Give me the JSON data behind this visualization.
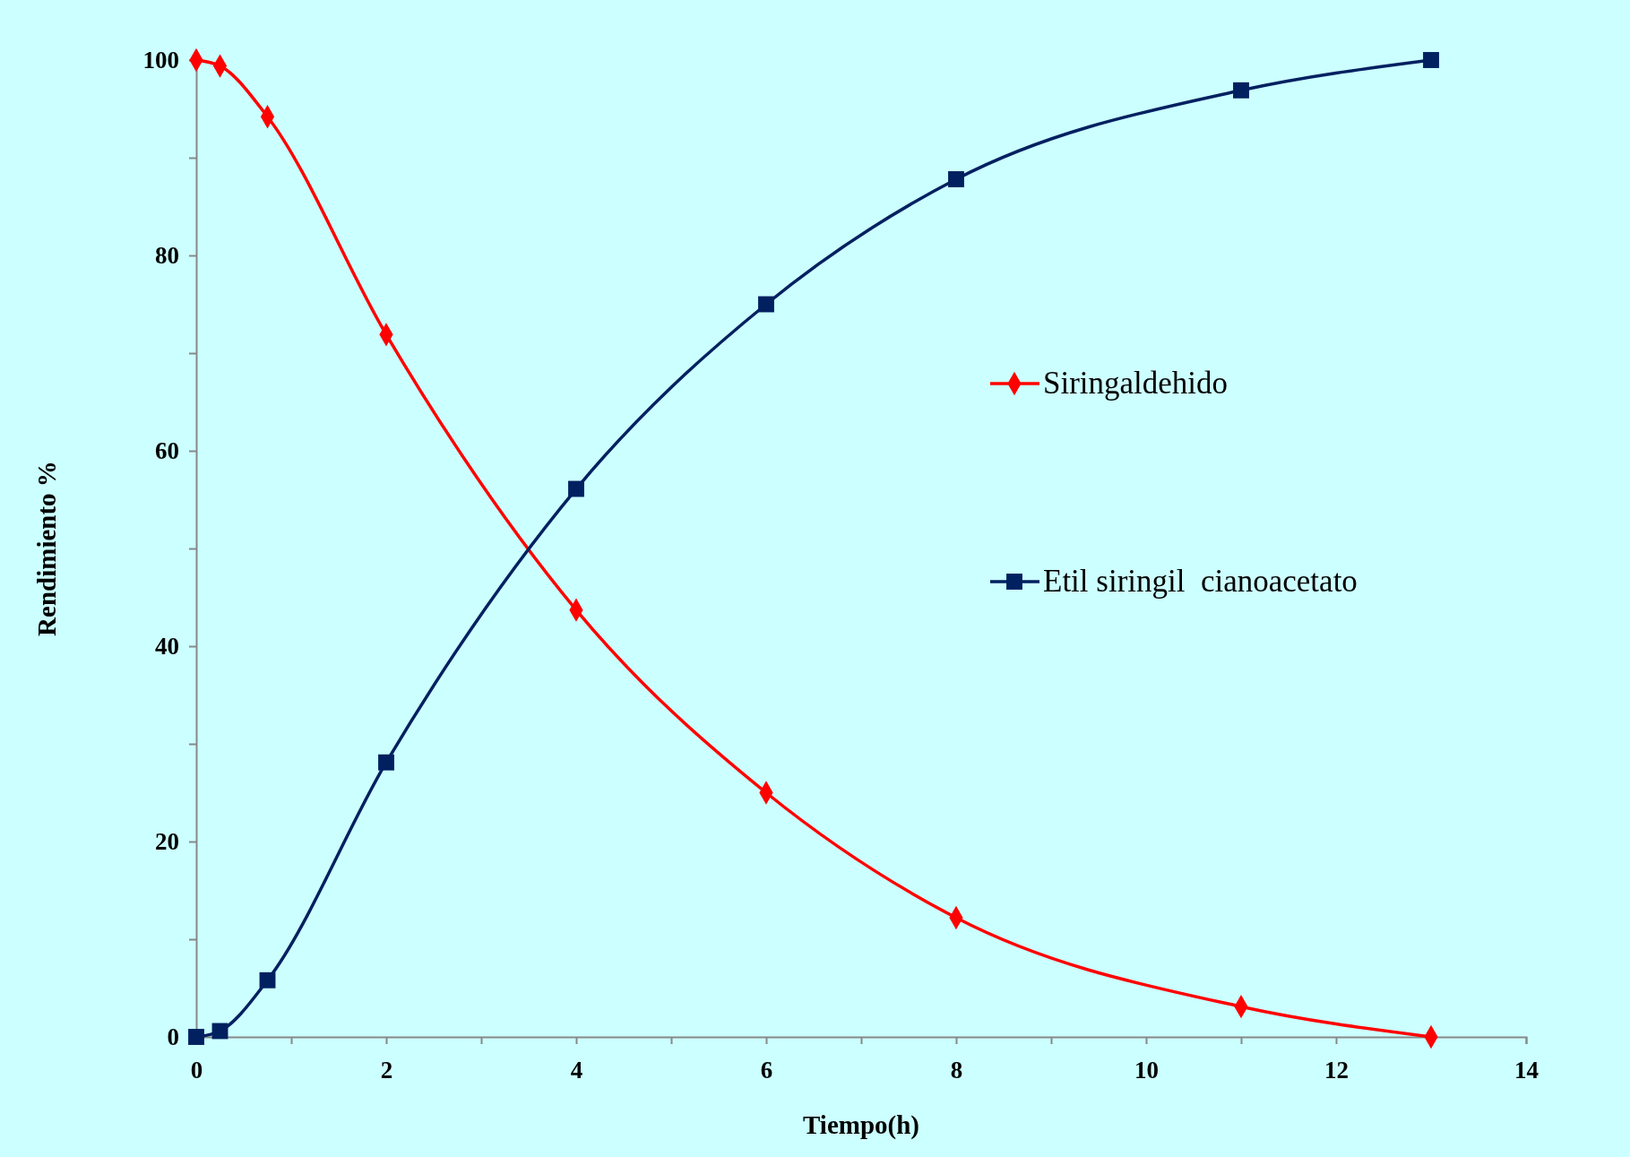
{
  "chart_data": {
    "type": "line",
    "xlabel": "Tiempo(h)",
    "ylabel": "Rendimiento %",
    "x": [
      0,
      0.25,
      0.75,
      2,
      4,
      6,
      8,
      11,
      13
    ],
    "series": [
      {
        "name": "Siringaldehido",
        "color": "#ff0000",
        "marker": "diamond",
        "values": [
          100,
          99.4,
          94.2,
          71.9,
          43.7,
          25.0,
          12.2,
          3.1,
          0
        ]
      },
      {
        "name": "Etil siringil  cianoacetato",
        "color": "#002060",
        "marker": "square",
        "values": [
          0,
          0.6,
          5.8,
          28.1,
          56.1,
          75.0,
          87.8,
          96.9,
          100
        ]
      }
    ],
    "xlim": [
      0,
      14
    ],
    "xticks": [
      0,
      {
        "value": 1,
        "label": null
      },
      2,
      {
        "value": 3,
        "label": null
      },
      4,
      {
        "value": 5,
        "label": null
      },
      6,
      {
        "value": 7,
        "label": null
      },
      8,
      {
        "value": 9,
        "label": null
      },
      10,
      {
        "value": 11,
        "label": null
      },
      12,
      {
        "value": 13,
        "label": null
      },
      14
    ],
    "ylim": [
      0,
      100
    ],
    "yticks": [
      0,
      {
        "value": 10,
        "label": null
      },
      20,
      {
        "value": 30,
        "label": null
      },
      40,
      {
        "value": 50,
        "label": null
      },
      60,
      {
        "value": 70,
        "label": null
      },
      80,
      {
        "value": 90,
        "label": null
      },
      100
    ],
    "grid": false,
    "legend": "right"
  }
}
